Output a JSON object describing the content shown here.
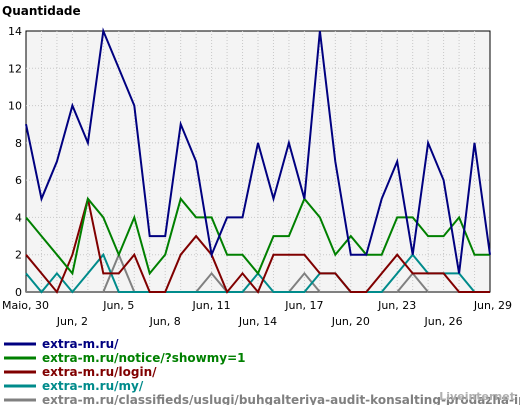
{
  "chart_data": {
    "type": "line",
    "ylabel": "Quantidade",
    "ylim": [
      0,
      14
    ],
    "yticks": [
      0,
      2,
      4,
      6,
      8,
      10,
      12,
      14
    ],
    "grid": true,
    "legend_position": "bottom",
    "x": [
      "Maio, 30",
      "Maio, 31",
      "Jun, 1",
      "Jun, 2",
      "Jun, 3",
      "Jun, 4",
      "Jun, 5",
      "Jun, 6",
      "Jun, 7",
      "Jun, 8",
      "Jun, 9",
      "Jun, 10",
      "Jun, 11",
      "Jun, 12",
      "Jun, 13",
      "Jun, 14",
      "Jun, 15",
      "Jun, 16",
      "Jun, 17",
      "Jun, 18",
      "Jun, 19",
      "Jun, 20",
      "Jun, 21",
      "Jun, 22",
      "Jun, 23",
      "Jun, 24",
      "Jun, 25",
      "Jun, 26",
      "Jun, 27",
      "Jun, 28",
      "Jun, 29"
    ],
    "xtick_labels": [
      {
        "index": 0,
        "label": "Maio, 30",
        "row": 0
      },
      {
        "index": 3,
        "label": "Jun, 2",
        "row": 1
      },
      {
        "index": 6,
        "label": "Jun, 5",
        "row": 0
      },
      {
        "index": 9,
        "label": "Jun, 8",
        "row": 1
      },
      {
        "index": 12,
        "label": "Jun, 11",
        "row": 0
      },
      {
        "index": 15,
        "label": "Jun, 14",
        "row": 1
      },
      {
        "index": 18,
        "label": "Jun, 17",
        "row": 0
      },
      {
        "index": 21,
        "label": "Jun, 20",
        "row": 1
      },
      {
        "index": 24,
        "label": "Jun, 23",
        "row": 0
      },
      {
        "index": 27,
        "label": "Jun, 26",
        "row": 1
      },
      {
        "index": 30,
        "label": "Jun, 29",
        "row": 0
      }
    ],
    "series": [
      {
        "name": "extra-m.ru/",
        "color": "#000080",
        "values": [
          9,
          5,
          7,
          10,
          8,
          14,
          12,
          10,
          3,
          3,
          9,
          7,
          2,
          4,
          4,
          8,
          5,
          8,
          5,
          14,
          7,
          2,
          2,
          5,
          7,
          2,
          8,
          6,
          1,
          8,
          2
        ]
      },
      {
        "name": "extra-m.ru/notice/?showmy=1",
        "color": "#008000",
        "values": [
          4,
          3,
          2,
          1,
          5,
          4,
          2,
          4,
          1,
          2,
          5,
          4,
          4,
          2,
          2,
          1,
          3,
          3,
          5,
          4,
          2,
          3,
          2,
          2,
          4,
          4,
          3,
          3,
          4,
          2,
          2
        ]
      },
      {
        "name": "extra-m.ru/login/",
        "color": "#800000",
        "values": [
          2,
          1,
          0,
          2,
          5,
          1,
          1,
          2,
          0,
          0,
          2,
          3,
          2,
          0,
          1,
          0,
          2,
          2,
          2,
          1,
          1,
          0,
          0,
          1,
          2,
          1,
          1,
          1,
          0,
          0,
          0
        ]
      },
      {
        "name": "extra-m.ru/my/",
        "color": "#008b8b",
        "values": [
          1,
          0,
          1,
          0,
          1,
          2,
          0,
          0,
          0,
          0,
          0,
          0,
          0,
          0,
          0,
          1,
          0,
          0,
          0,
          1,
          1,
          0,
          0,
          0,
          1,
          2,
          1,
          1,
          1,
          0,
          0
        ]
      },
      {
        "name": "extra-m.ru/classifieds/uslugi/buhgalteriya-audit-konsalting-prodazha-ip/all/",
        "color": "#808080",
        "values": [
          0,
          0,
          0,
          0,
          0,
          0,
          2,
          0,
          0,
          0,
          0,
          0,
          1,
          0,
          0,
          0,
          0,
          0,
          1,
          0,
          0,
          0,
          0,
          0,
          0,
          1,
          0,
          0,
          0,
          0,
          0
        ]
      }
    ]
  },
  "watermark": "Liveinternet"
}
